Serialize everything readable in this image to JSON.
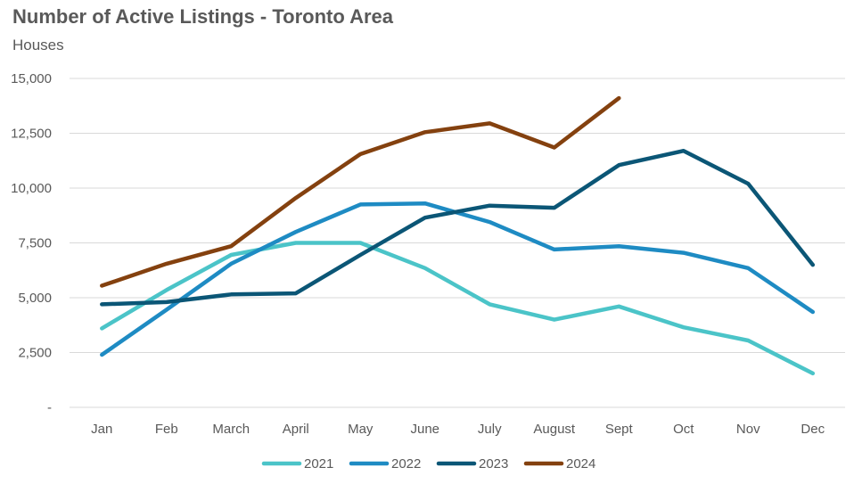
{
  "chart_data": {
    "type": "line",
    "title": "Number of Active Listings - Toronto Area",
    "subtitle": "Houses",
    "categories": [
      "Jan",
      "Feb",
      "March",
      "April",
      "May",
      "June",
      "July",
      "August",
      "Sept",
      "Oct",
      "Nov",
      "Dec"
    ],
    "y_ticks": [
      "-",
      "2,500",
      "5,000",
      "7,500",
      "10,000",
      "12,500",
      "15,000"
    ],
    "y_tick_values": [
      0,
      2500,
      5000,
      7500,
      10000,
      12500,
      15000
    ],
    "ylim": [
      0,
      15000
    ],
    "grid": true,
    "legend_position": "bottom",
    "series": [
      {
        "name": "2021",
        "color": "#4BC4C8",
        "values": [
          3600,
          5350,
          6950,
          7500,
          7500,
          6350,
          4700,
          4000,
          4600,
          3650,
          3050,
          1550
        ]
      },
      {
        "name": "2022",
        "color": "#1E8BC3",
        "values": [
          2400,
          4450,
          6550,
          8000,
          9250,
          9300,
          8450,
          7200,
          7350,
          7050,
          6350,
          4350
        ]
      },
      {
        "name": "2023",
        "color": "#0B5676",
        "values": [
          4700,
          4800,
          5150,
          5200,
          6950,
          8650,
          9200,
          9100,
          11050,
          11700,
          10200,
          6500
        ]
      },
      {
        "name": "2024",
        "color": "#84410F",
        "values": [
          5550,
          6550,
          7350,
          9550,
          11550,
          12550,
          12950,
          11850,
          14100,
          null,
          null,
          null
        ]
      }
    ]
  }
}
